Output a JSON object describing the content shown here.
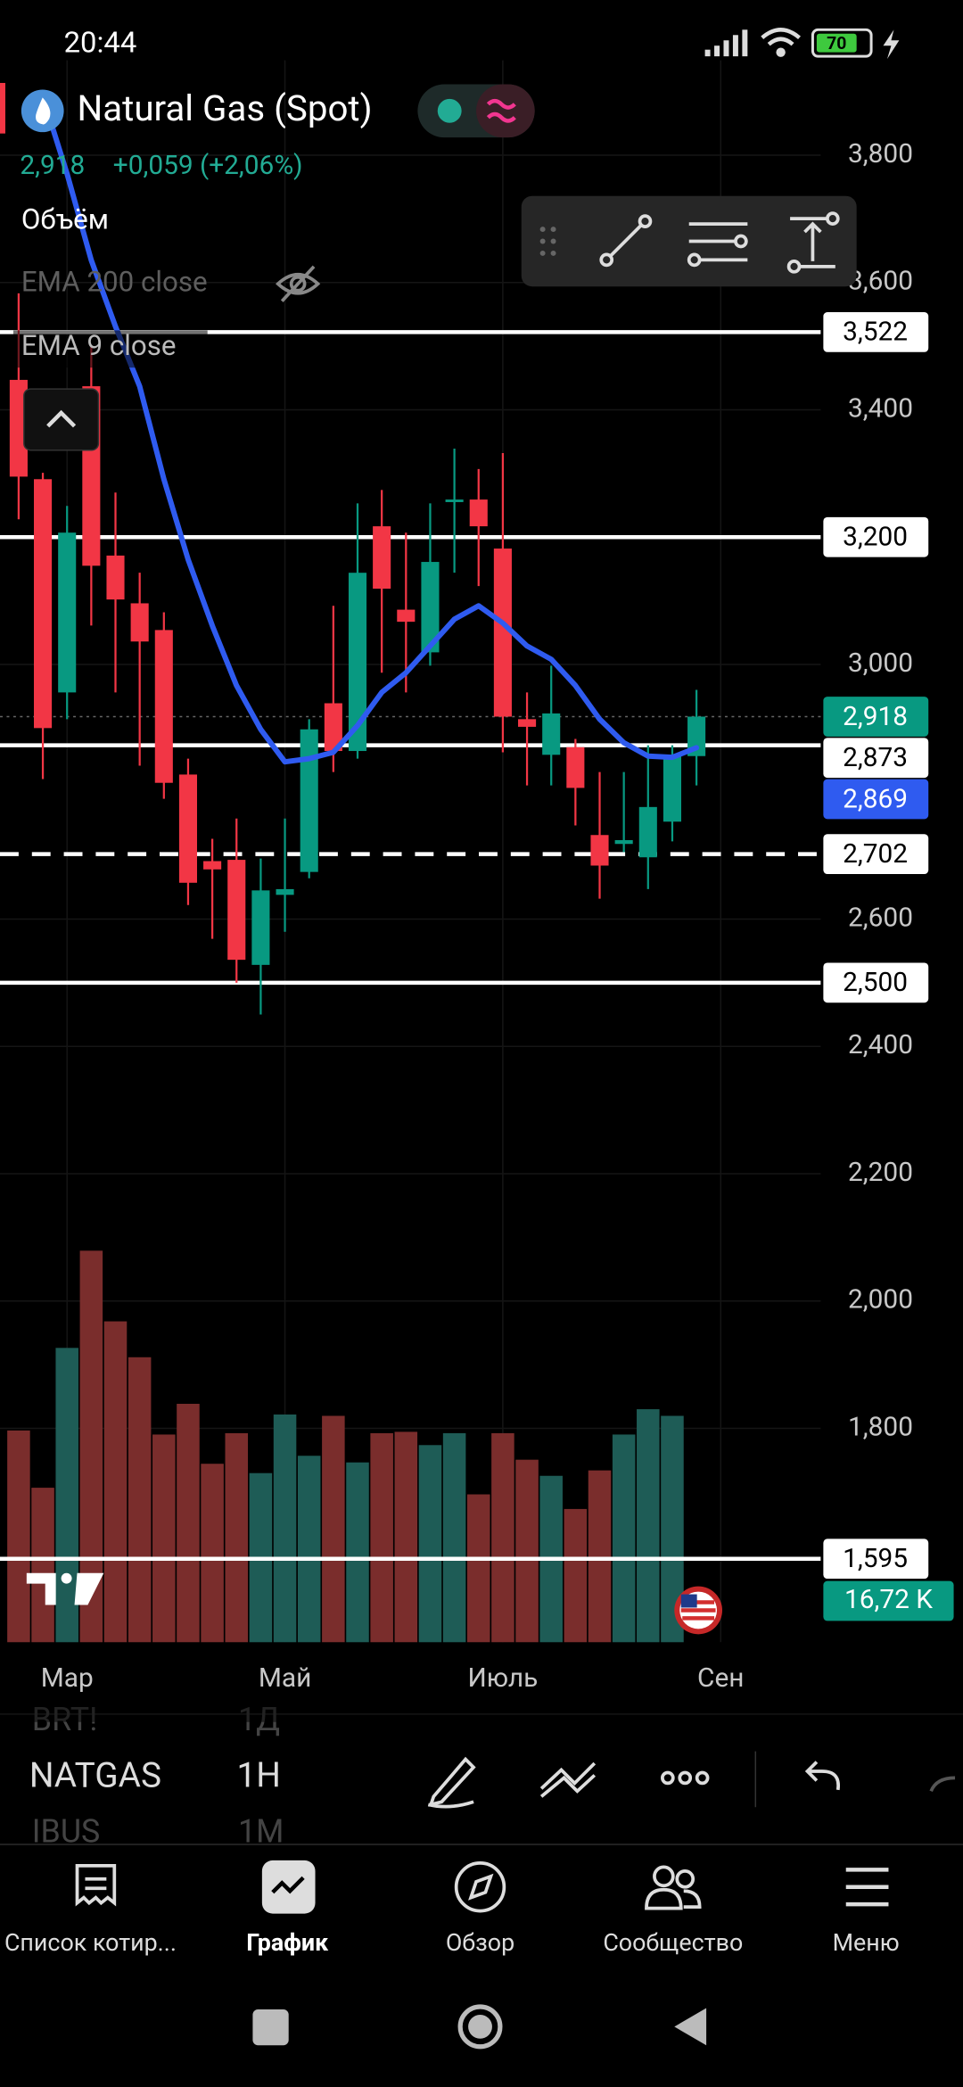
{
  "status_bar": {
    "time": "20:44",
    "battery": "70"
  },
  "header": {
    "symbol": "Natural Gas (Spot)",
    "price": "2,918",
    "change": "+0,059 (+2,06%)",
    "indicators": [
      "Объём",
      "EMA 200 close",
      "EMA 9 close"
    ]
  },
  "chart_data": {
    "type": "candlestick",
    "open": [
      3447,
      3291,
      2956,
      3437,
      3171,
      3096,
      3054,
      2827,
      2691,
      2693,
      2528,
      2638,
      2674,
      2939,
      2864,
      3217,
      3086,
      3019,
      3255,
      3259,
      3182,
      2914,
      2858,
      2870,
      2732,
      2718,
      2697,
      2753,
      2856
    ],
    "high": [
      3583,
      3301,
      3249,
      3500,
      3270,
      3144,
      3082,
      2852,
      2726,
      2758,
      2695,
      2758,
      2914,
      3092,
      3253,
      3274,
      3207,
      3253,
      3339,
      3307,
      3332,
      2956,
      2998,
      2883,
      2831,
      2831,
      2873,
      2873,
      2960
    ],
    "low": [
      3228,
      2820,
      2914,
      3061,
      2956,
      2841,
      2789,
      2622,
      2569,
      2500,
      2450,
      2580,
      2664,
      2831,
      2852,
      2987,
      2956,
      2998,
      3144,
      3123,
      2862,
      2810,
      2810,
      2747,
      2632,
      2705,
      2647,
      2722,
      2810
    ],
    "close": [
      3295,
      2900,
      3207,
      3155,
      3102,
      3036,
      2814,
      2657,
      2678,
      2536,
      2645,
      2647,
      2898,
      2864,
      3144,
      3119,
      3067,
      3161,
      3259,
      3217,
      2918,
      2902,
      2923,
      2806,
      2684,
      2724,
      2776,
      2856,
      2918
    ],
    "close_label": "2,918",
    "up_color": "#089981",
    "down_color": "#f23645",
    "volume": [
      15.64,
      11.41,
      21.74,
      28.92,
      23.7,
      21.05,
      15.34,
      17.61,
      13.18,
      15.44,
      12.49,
      16.82,
      13.77,
      16.72,
      13.28,
      15.44,
      15.54,
      14.56,
      15.44,
      10.92,
      15.44,
      13.48,
      12.29,
      9.84,
      12.69,
      15.34,
      17.21,
      16.72,
      null
    ],
    "volume_label": "16,72 K",
    "volume_up_color": "#1e5c56",
    "volume_down_color": "#7a2d2c",
    "volume_ylim": [
      0,
      40
    ],
    "ema": [
      null,
      3892,
      3771,
      3635,
      3531,
      3437,
      3291,
      3165,
      3061,
      2967,
      2898,
      2847,
      2852,
      2862,
      2904,
      2956,
      2987,
      3029,
      3071,
      3092,
      3065,
      3029,
      3008,
      2967,
      2914,
      2877,
      2856,
      2854,
      2869
    ],
    "ema_label": "2,869",
    "ema_color": "#2f5bf0",
    "levels": [
      {
        "value": 3522,
        "label": "3,522"
      },
      {
        "value": 3200,
        "label": "3,200"
      },
      {
        "value": 2873,
        "label": "2,873"
      },
      {
        "value": 2702,
        "label": "2,702",
        "dashed": true
      },
      {
        "value": 2500,
        "label": "2,500"
      },
      {
        "value": 1595,
        "label": "1,595"
      }
    ],
    "ylim": [
      1464,
      3949
    ],
    "yticks": [
      {
        "value": 3800,
        "label": "3,800"
      },
      {
        "value": 3600,
        "label": "3,600"
      },
      {
        "value": 3400,
        "label": "3,400"
      },
      {
        "value": 3200,
        "label": "3,200"
      },
      {
        "value": 3000,
        "label": "3,000"
      },
      {
        "value": 2600,
        "label": "2,600"
      },
      {
        "value": 2400,
        "label": "2,400"
      },
      {
        "value": 2200,
        "label": "2,200"
      },
      {
        "value": 2000,
        "label": "2,000"
      },
      {
        "value": 1800,
        "label": "1,800"
      }
    ],
    "xlim": [
      -0.77,
      33.13
    ],
    "xticks": [
      {
        "value": 2,
        "label": "Мар"
      },
      {
        "value": 11,
        "label": "Май"
      },
      {
        "value": 20,
        "label": "Июль"
      },
      {
        "value": 29,
        "label": "Сен"
      }
    ],
    "grid": true
  },
  "symbols": [
    {
      "name": "BRT!",
      "interval": "1Д"
    },
    {
      "name": "NATGAS",
      "interval": "1H"
    },
    {
      "name": "IBUS",
      "interval": "1M"
    }
  ],
  "nav": [
    "Список котир...",
    "График",
    "Обзор",
    "Сообщество",
    "Меню"
  ]
}
